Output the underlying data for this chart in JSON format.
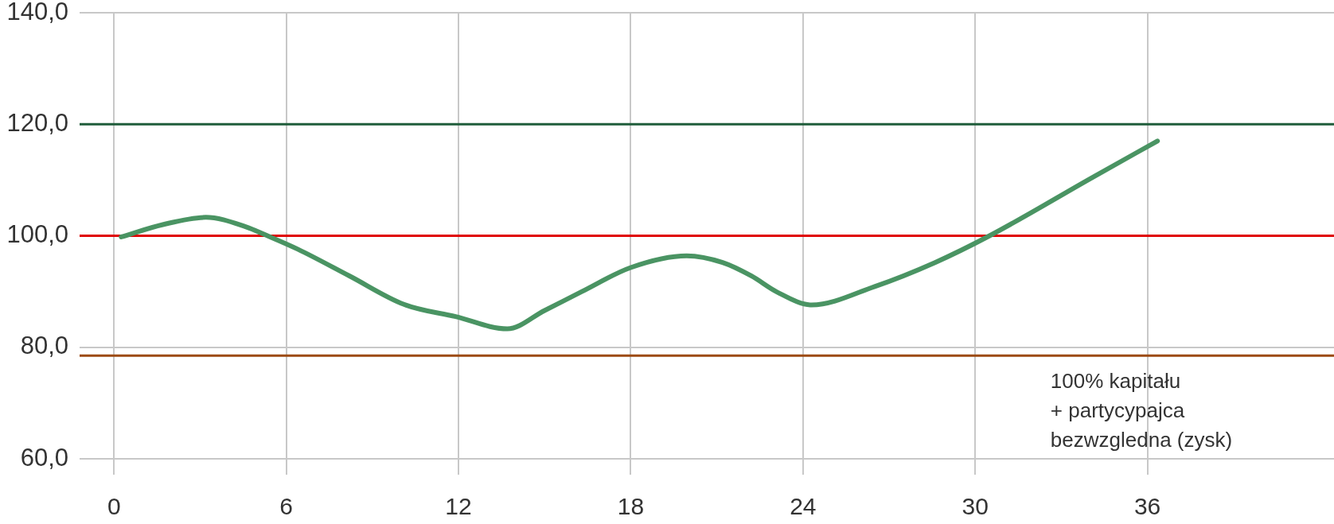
{
  "chart_data": {
    "type": "line",
    "x": [
      0.25,
      1.7,
      3.2,
      4.6,
      5.3,
      6.4,
      8.2,
      10.1,
      11.9,
      13.7,
      15.0,
      16.3,
      18.0,
      19.95,
      21.2,
      22.2,
      23.1,
      24.3,
      26.5,
      28.6,
      30.5,
      34.1,
      36.35
    ],
    "values": [
      99.8,
      102.0,
      103.3,
      101.6,
      100.1,
      97.6,
      92.8,
      87.7,
      85.5,
      83.3,
      86.6,
      90.0,
      94.3,
      96.4,
      95.2,
      92.8,
      89.9,
      87.6,
      90.9,
      95.2,
      100.0,
      110.5,
      117.0
    ],
    "color": "#4a9463",
    "xlim": [
      -1.2,
      42.5
    ],
    "xticks": [
      0,
      6,
      12,
      18,
      24,
      30,
      36
    ],
    "ylim": [
      60,
      140
    ],
    "yticks": [
      {
        "value": 60,
        "label": "60,0"
      },
      {
        "value": 80,
        "label": "80,0"
      },
      {
        "value": 100,
        "label": "100,0"
      },
      {
        "value": 120,
        "label": "120,0"
      },
      {
        "value": 140,
        "label": "140,0"
      }
    ],
    "grid": true,
    "marker": "none",
    "line_style": "solid",
    "ref_lines": [
      {
        "axis": "y",
        "value": 120,
        "color": "#1f5c3a"
      },
      {
        "axis": "y",
        "value": 100,
        "color": "#e00000"
      },
      {
        "axis": "y",
        "value": 78.5,
        "color": "#9c4a10",
        "label": "100% kapitału\n+ partycypajca\nbezwzgledna (zysk)"
      }
    ]
  }
}
